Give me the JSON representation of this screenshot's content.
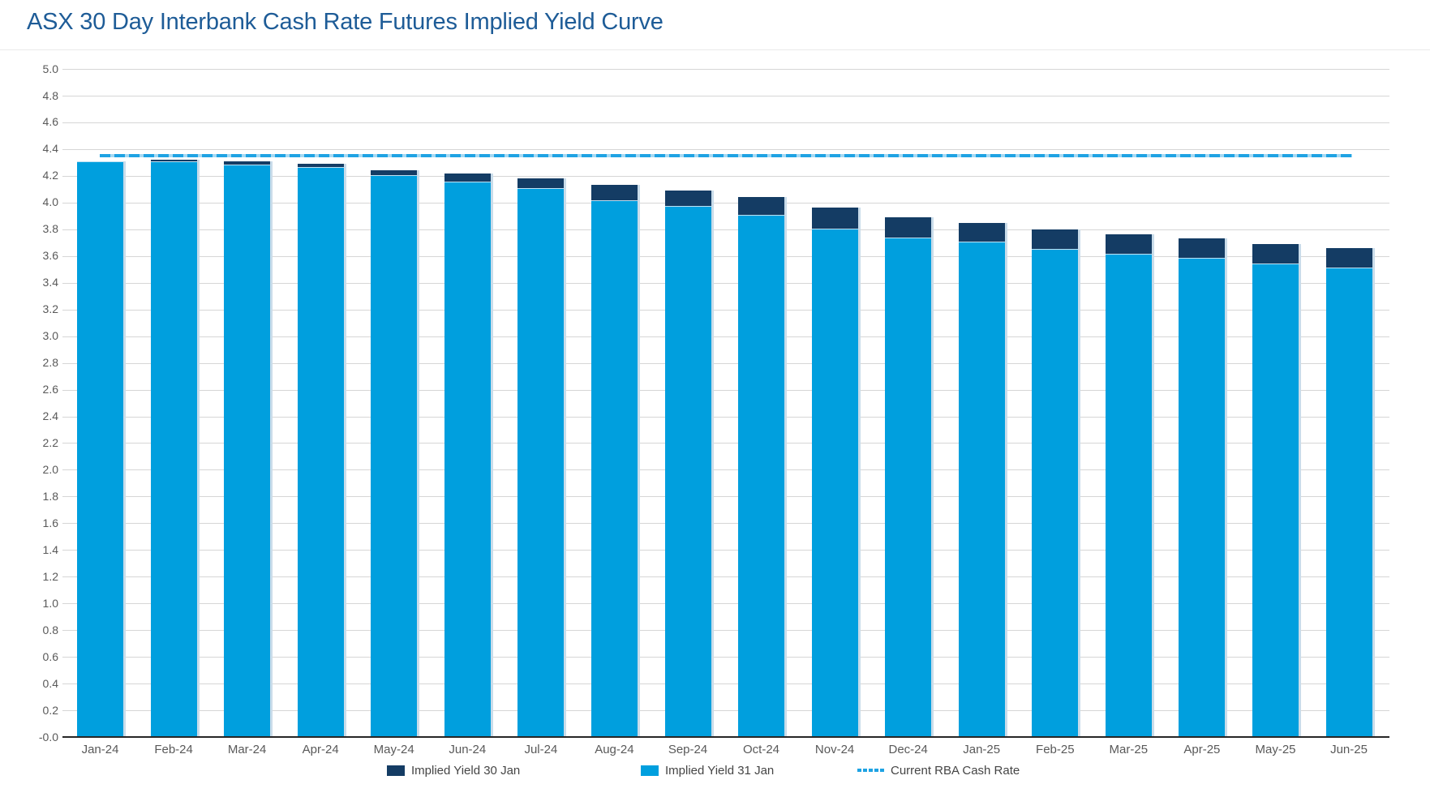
{
  "title": "ASX 30 Day Interbank Cash Rate Futures Implied Yield Curve",
  "colors": {
    "title_text": "#1E5C97",
    "implied_30jan": "#143C64",
    "implied_31jan": "#009FDE",
    "rba_dash": "#1FA3E3",
    "rba_dash_gap": "#A6D9F3",
    "gridline": "#D6D6D6",
    "axis_line": "#262626",
    "tick_text": "#595959",
    "legend_text": "#454545"
  },
  "chart_data": {
    "type": "bar",
    "title": "ASX 30 Day Interbank Cash Rate Futures Implied Yield Curve",
    "categories": [
      "Jan-24",
      "Feb-24",
      "Mar-24",
      "Apr-24",
      "May-24",
      "Jun-24",
      "Jul-24",
      "Aug-24",
      "Sep-24",
      "Oct-24",
      "Nov-24",
      "Dec-24",
      "Jan-25",
      "Feb-25",
      "Mar-25",
      "Apr-25",
      "May-25",
      "Jun-25"
    ],
    "series": [
      {
        "name": "Implied Yield 30 Jan",
        "color_key": "implied_30jan",
        "values": [
          4.3,
          4.32,
          4.31,
          4.29,
          4.24,
          4.22,
          4.18,
          4.13,
          4.09,
          4.04,
          3.96,
          3.89,
          3.85,
          3.8,
          3.76,
          3.73,
          3.69,
          3.66
        ]
      },
      {
        "name": "Implied Yield 31 Jan",
        "color_key": "implied_31jan",
        "values": [
          4.3,
          4.3,
          4.28,
          4.26,
          4.2,
          4.15,
          4.1,
          4.01,
          3.97,
          3.9,
          3.8,
          3.73,
          3.7,
          3.65,
          3.61,
          3.58,
          3.54,
          3.51
        ]
      }
    ],
    "rba_line": {
      "name": "Current RBA Cash Rate",
      "value": 4.35
    },
    "xlabel": "",
    "ylabel": "",
    "ylim": [
      0.0,
      5.0
    ],
    "ytick_step": 0.2,
    "grid": true,
    "legend_position": "bottom",
    "bar_style": "overlaid (31 Jan bars drawn in front of 30 Jan bars)"
  },
  "legend": {
    "items": [
      {
        "label": "Implied Yield 30 Jan",
        "swatch": "navy-square"
      },
      {
        "label": "Implied Yield 31 Jan",
        "swatch": "lightblue-square"
      },
      {
        "label": "Current RBA Cash Rate",
        "swatch": "lightblue-dashed-line"
      }
    ]
  }
}
